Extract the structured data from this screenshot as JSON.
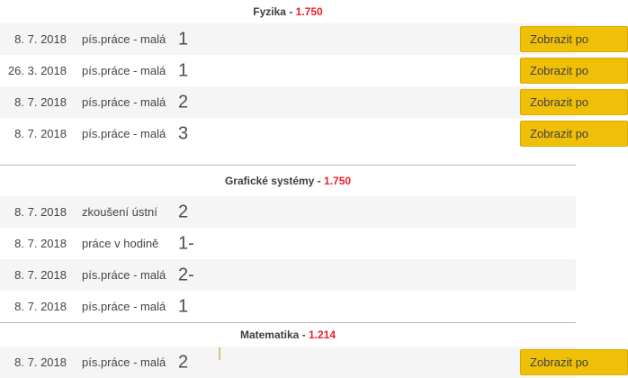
{
  "separator": " - ",
  "colors": {
    "average_red": "#e8202a",
    "button_yellow": "#f0c008",
    "row_alt_gray": "#f5f5f5",
    "divider_gray": "#bdbdbd"
  },
  "button_label": "Zobrazit po",
  "sections": [
    {
      "subject": "Fyzika",
      "average": "1.750",
      "rows": [
        {
          "date": "8. 7. 2018",
          "type": "pís.práce - malá",
          "grade": "1",
          "button": "Zobrazit po"
        },
        {
          "date": "26. 3. 2018",
          "type": "pís.práce - malá",
          "grade": "1",
          "button": "Zobrazit po"
        },
        {
          "date": "8. 7. 2018",
          "type": "pís.práce - malá",
          "grade": "2",
          "button": "Zobrazit po"
        },
        {
          "date": "8. 7. 2018",
          "type": "pís.práce - malá",
          "grade": "3",
          "button": "Zobrazit po"
        }
      ]
    },
    {
      "subject": "Grafické systémy",
      "average": "1.750",
      "rows": [
        {
          "date": "8. 7. 2018",
          "type": "zkoušení ústní",
          "grade": "2"
        },
        {
          "date": "8. 7. 2018",
          "type": "práce v hodině",
          "grade": "1-"
        },
        {
          "date": "8. 7. 2018",
          "type": "pís.práce - malá",
          "grade": "2-"
        },
        {
          "date": "8. 7. 2018",
          "type": "pís.práce - malá",
          "grade": "1"
        }
      ]
    },
    {
      "subject": "Matematika",
      "average": "1.214",
      "rows": [
        {
          "date": "8. 7. 2018",
          "type": "pís.práce - malá",
          "grade": "2",
          "button": "Zobrazit po"
        }
      ]
    }
  ]
}
